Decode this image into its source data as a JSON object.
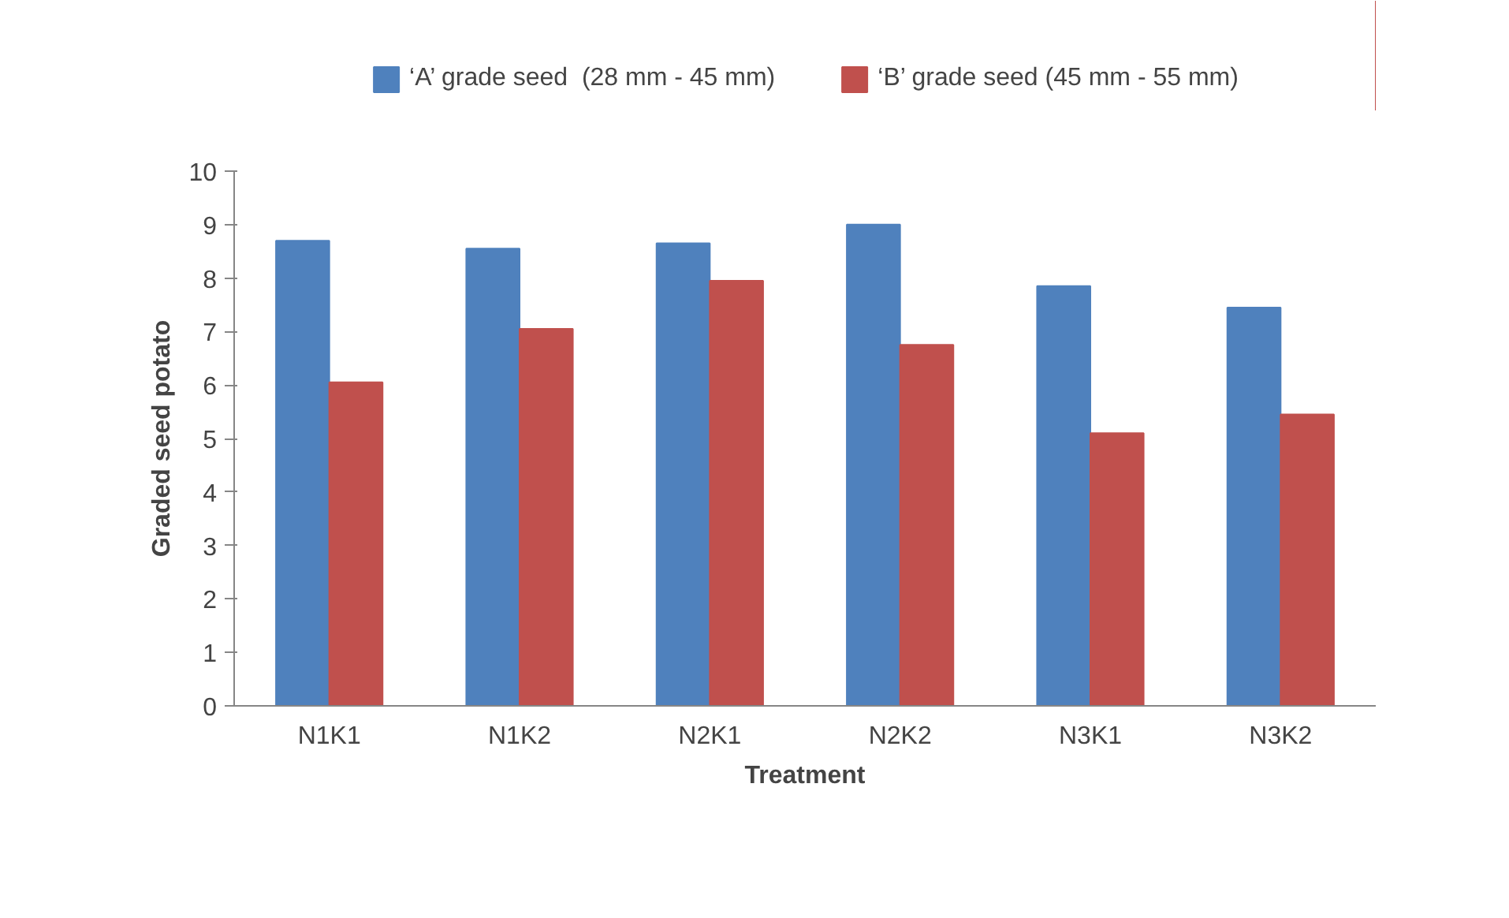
{
  "chart_data": {
    "type": "bar",
    "xlabel": "Treatment",
    "ylabel": "Graded seed potato",
    "categories": [
      "N1K1",
      "N1K2",
      "N2K1",
      "N2K2",
      "N3K1",
      "N3K2"
    ],
    "series": [
      {
        "name": "‘A’ grade seed  (28 mm - 45 mm)",
        "color": "#4f81bd",
        "values": [
          8.7,
          8.55,
          8.65,
          9.0,
          7.85,
          7.45
        ]
      },
      {
        "name": "‘B’ grade seed (45 mm - 55 mm)",
        "color": "#c0504d",
        "values": [
          6.05,
          7.05,
          7.95,
          6.75,
          5.1,
          5.45
        ]
      }
    ],
    "ylim": [
      0,
      10
    ],
    "yticks": [
      0,
      1,
      2,
      3,
      4,
      5,
      6,
      7,
      8,
      9,
      10
    ],
    "grid": false,
    "legend": "top"
  }
}
